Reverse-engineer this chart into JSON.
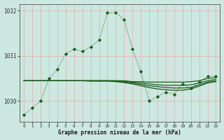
{
  "background_color": "#cce8e0",
  "grid_color": "#e8aaaa",
  "line_color": "#1a5c1a",
  "title": "Graphe pression niveau de la mer (hPa)",
  "xlim": [
    -0.5,
    23.5
  ],
  "ylim": [
    1029.55,
    1032.15
  ],
  "yticks": [
    1030,
    1031,
    1032
  ],
  "xticks": [
    0,
    1,
    2,
    3,
    4,
    5,
    6,
    7,
    8,
    9,
    10,
    11,
    12,
    13,
    14,
    15,
    16,
    17,
    18,
    19,
    20,
    21,
    22,
    23
  ],
  "hours": [
    0,
    1,
    2,
    3,
    4,
    5,
    6,
    7,
    8,
    9,
    10,
    11,
    12,
    13,
    14,
    15,
    16,
    17,
    18,
    19,
    20,
    21,
    22,
    23
  ],
  "main_series": [
    1029.7,
    1029.85,
    1030.0,
    1030.5,
    1030.7,
    1031.05,
    1031.15,
    1031.1,
    1031.2,
    1031.35,
    1031.95,
    1031.95,
    1031.8,
    1031.15,
    1030.65,
    1030.0,
    1030.1,
    1030.2,
    1030.15,
    1030.38,
    1030.28,
    1030.42,
    1030.55,
    1030.55
  ],
  "series2": [
    1030.45,
    1030.45,
    1030.45,
    1030.45,
    1030.45,
    1030.45,
    1030.45,
    1030.45,
    1030.45,
    1030.45,
    1030.45,
    1030.45,
    1030.45,
    1030.43,
    1030.43,
    1030.42,
    1030.42,
    1030.42,
    1030.42,
    1030.42,
    1030.43,
    1030.45,
    1030.5,
    1030.52
  ],
  "series3": [
    1030.45,
    1030.45,
    1030.45,
    1030.45,
    1030.45,
    1030.45,
    1030.45,
    1030.45,
    1030.45,
    1030.45,
    1030.45,
    1030.45,
    1030.44,
    1030.42,
    1030.4,
    1030.38,
    1030.36,
    1030.35,
    1030.35,
    1030.35,
    1030.36,
    1030.4,
    1030.45,
    1030.48
  ],
  "series4": [
    1030.45,
    1030.45,
    1030.45,
    1030.45,
    1030.45,
    1030.45,
    1030.45,
    1030.45,
    1030.45,
    1030.45,
    1030.45,
    1030.44,
    1030.42,
    1030.4,
    1030.37,
    1030.34,
    1030.32,
    1030.3,
    1030.29,
    1030.29,
    1030.3,
    1030.36,
    1030.42,
    1030.45
  ],
  "series5": [
    1030.45,
    1030.45,
    1030.45,
    1030.45,
    1030.45,
    1030.45,
    1030.45,
    1030.45,
    1030.44,
    1030.44,
    1030.44,
    1030.43,
    1030.41,
    1030.38,
    1030.34,
    1030.3,
    1030.27,
    1030.25,
    1030.24,
    1030.24,
    1030.27,
    1030.33,
    1030.4,
    1030.43
  ]
}
